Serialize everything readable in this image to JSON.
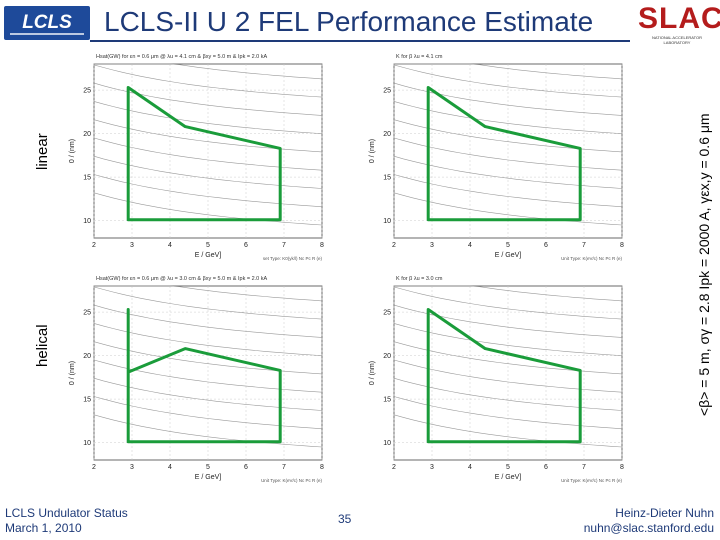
{
  "header": {
    "logo_left_text": "LCLS",
    "title": "LCLS-II U 2 FEL Performance Estimate",
    "logo_right_text": "SLAC",
    "logo_right_subtext": "NATIONAL ACCELERATOR LABORATORY"
  },
  "rows": {
    "linear_label": "linear",
    "helical_label": "helical"
  },
  "right_caption": "<β> = 5 m, σγ = 2.8   Ipk = 2000 A, γεx,y = 0.6 μm",
  "colors": {
    "accent": "#1e3a78",
    "region": "#1a9c3a",
    "slac_red": "#b41c1c"
  },
  "panels": [
    {
      "id": "linear-left",
      "heading": "Hsat(GW) for εn = 0.6 μm @ λu = 4.1 cm & βxy = 5.0 m & Ipk = 2.0 kA",
      "xlabel": "E / GeV]",
      "ylabel": "0 / (nm)",
      "xticks": [
        "2",
        "3",
        "4",
        "5",
        "6",
        "7",
        "8"
      ],
      "yticks": [
        "10",
        "15",
        "20",
        "25"
      ],
      "footnote": "set Type: K0(yk/l) Nc Pc R (e)",
      "region": [
        [
          2.9,
          25.3
        ],
        [
          4.4,
          20.8
        ],
        [
          6.9,
          18.3
        ],
        [
          6.9,
          10.1
        ],
        [
          2.9,
          10.1
        ]
      ]
    },
    {
      "id": "linear-right",
      "heading": "K for β λu = 4.1 cm",
      "xlabel": "E / GeV]",
      "ylabel": "0 / (nm)",
      "xticks": [
        "2",
        "3",
        "4",
        "5",
        "6",
        "7",
        "8"
      ],
      "yticks": [
        "10",
        "15",
        "20",
        "25"
      ],
      "footnote": "Unit Type: K(eV/c) Nc Pc R (e)",
      "region": [
        [
          2.9,
          25.3
        ],
        [
          4.4,
          20.8
        ],
        [
          6.9,
          18.3
        ],
        [
          6.9,
          10.1
        ],
        [
          2.9,
          10.1
        ]
      ]
    },
    {
      "id": "helical-left",
      "heading": "Hsat(GW) for εn = 0.6 μm @ λu = 3.0 cm & βxy = 5.0 m & Ipk = 2.0 kA",
      "xlabel": "E / GeV]",
      "ylabel": "0 / (nm)",
      "xticks": [
        "2",
        "3",
        "4",
        "5",
        "6",
        "7",
        "8"
      ],
      "yticks": [
        "10",
        "15",
        "20",
        "25"
      ],
      "footnote": "Unit Type: K(eV/c) Nc Pc R (e)",
      "region": [
        [
          2.9,
          25.3
        ],
        [
          2.9,
          18.1
        ],
        [
          4.4,
          20.8
        ],
        [
          6.9,
          18.3
        ],
        [
          6.9,
          10.1
        ],
        [
          2.9,
          10.1
        ]
      ]
    },
    {
      "id": "helical-right",
      "heading": "K for β λu = 3.0 cm",
      "xlabel": "E / GeV]",
      "ylabel": "0 / (nm)",
      "xticks": [
        "2",
        "3",
        "4",
        "5",
        "6",
        "7",
        "8"
      ],
      "yticks": [
        "10",
        "15",
        "20",
        "25"
      ],
      "footnote": "Unit Type: K(eV/c) Nc Pc R (e)",
      "region": [
        [
          2.9,
          25.3
        ],
        [
          4.4,
          20.8
        ],
        [
          6.9,
          18.3
        ],
        [
          6.9,
          10.1
        ],
        [
          2.9,
          10.1
        ]
      ]
    }
  ],
  "footer": {
    "left_line1": "LCLS Undulator Status",
    "left_line2": "March 1, 2010",
    "page_number": "35",
    "right_line1": "Heinz-Dieter Nuhn",
    "right_line2": "nuhn@slac.stanford.edu"
  }
}
